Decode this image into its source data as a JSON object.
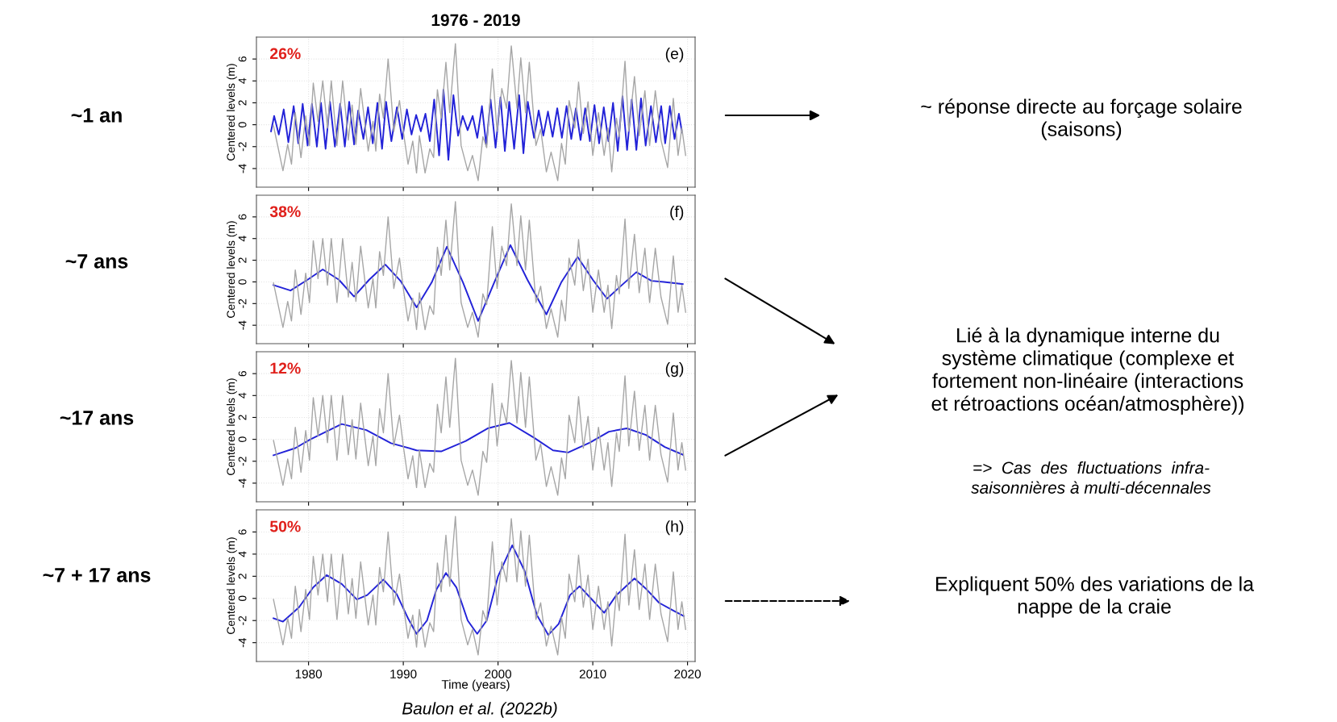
{
  "chart_data": [
    {
      "type": "line",
      "title": "1976 - 2019",
      "ylabel": "Centered levels (m)",
      "xlim": [
        1974.5,
        2020.8
      ],
      "ylim": [
        -5.7,
        8
      ],
      "xticks": [
        1980,
        1990,
        2000,
        2010,
        2020
      ],
      "yticks": [
        -4,
        -2,
        0,
        2,
        4,
        6
      ],
      "tick_labels": "y",
      "grid": true,
      "legend": false,
      "annotations": [
        "26%",
        "(e)",
        "~1 an",
        "~ réponse directe au forçage solaire\n(saisons)"
      ],
      "series": [
        {
          "color": "#a6a6a6",
          "x": [
            1976.3,
            1977.3,
            1977.8,
            1978.2,
            1978.6,
            1979.2,
            1979.7,
            1980.1,
            1980.5,
            1981.0,
            1981.5,
            1982.0,
            1982.4,
            1983.0,
            1983.6,
            1984.2,
            1984.6,
            1985.0,
            1985.5,
            1986.3,
            1986.8,
            1987.1,
            1987.5,
            1987.9,
            1988.4,
            1989.0,
            1989.6,
            1990.0,
            1990.5,
            1991.0,
            1991.4,
            1991.7,
            1992.3,
            1992.8,
            1993.2,
            1993.6,
            1994.0,
            1994.5,
            1994.9,
            1995.5,
            1996.1,
            1996.8,
            1997.3,
            1997.9,
            1998.4,
            1998.8,
            1999.4,
            1999.9,
            2000.4,
            2000.9,
            2001.4,
            2002.0,
            2002.4,
            2002.9,
            2003.3,
            2004.0,
            2004.5,
            2005.1,
            2005.6,
            2006.3,
            2006.7,
            2007.1,
            2007.5,
            2008.1,
            2008.5,
            2009.0,
            2009.5,
            2010.0,
            2010.6,
            2011.2,
            2011.6,
            2012.0,
            2012.5,
            2012.8,
            2013.4,
            2013.8,
            2014.4,
            2014.9,
            2015.5,
            2016.0,
            2016.6,
            2017.2,
            2017.9,
            2018.5,
            2019.0,
            2019.4,
            2019.8
          ],
          "values": [
            -0.1,
            -4.2,
            -1.8,
            -3.6,
            1.1,
            -3.0,
            0.8,
            -1.9,
            3.8,
            0.3,
            4.0,
            -0.3,
            4.0,
            -1.9,
            4.0,
            -1.4,
            1.8,
            -1.8,
            3.3,
            -2.4,
            0.3,
            -2.4,
            2.8,
            0.6,
            6.0,
            -0.6,
            2.2,
            -0.6,
            -3.6,
            -1.5,
            -4.4,
            -1.0,
            -4.4,
            -2.2,
            -3.0,
            3.2,
            0.6,
            5.7,
            1.1,
            7.4,
            -1.9,
            -4.2,
            -2.8,
            -5.1,
            -1.1,
            -2.1,
            5.1,
            -0.6,
            3.3,
            1.5,
            7.2,
            1.5,
            6.1,
            1.1,
            5.7,
            -1.9,
            -0.4,
            -4.3,
            -2.5,
            -5.1,
            -1.7,
            -3.6,
            2.2,
            -0.3,
            3.9,
            -0.8,
            2.1,
            -2.8,
            1.1,
            -2.8,
            -0.3,
            -4.3,
            0.6,
            -1.1,
            5.8,
            -0.6,
            4.4,
            -1.0,
            3.1,
            -1.9,
            3.1,
            -1.4,
            -3.9,
            2.4,
            -2.8,
            -0.3,
            -2.8
          ]
        },
        {
          "color": "#2323d8",
          "x": [
            1976.04,
            1976.37,
            1976.86,
            1977.38,
            1977.87,
            1978.43,
            1978.92,
            1979.38,
            1979.9,
            1980.36,
            1980.88,
            1981.31,
            1981.8,
            1982.26,
            1982.78,
            1983.34,
            1983.83,
            1984.29,
            1984.81,
            1985.24,
            1985.79,
            1986.28,
            1986.78,
            1987.27,
            1987.76,
            1988.18,
            1988.74,
            1989.33,
            1989.89,
            1990.38,
            1990.87,
            1991.36,
            1991.85,
            1992.34,
            1992.8,
            1993.26,
            1993.78,
            1994.24,
            1994.76,
            1995.29,
            1995.78,
            1996.27,
            1996.79,
            1997.32,
            1997.81,
            1998.3,
            1998.76,
            1999.21,
            1999.74,
            2000.26,
            2000.72,
            2001.18,
            2001.7,
            2002.23,
            2002.68,
            2003.14,
            2003.8,
            2004.29,
            2004.78,
            2005.27,
            2005.76,
            2006.25,
            2006.74,
            2007.23,
            2007.73,
            2008.22,
            2008.71,
            2009.2,
            2009.69,
            2010.18,
            2010.67,
            2011.16,
            2011.65,
            2012.14,
            2012.64,
            2013.13,
            2013.62,
            2014.11,
            2014.6,
            2015.09,
            2015.58,
            2016.14,
            2016.66,
            2017.22,
            2017.64,
            2018.13,
            2018.63,
            2019.09,
            2019.42
          ],
          "values": [
            -0.6,
            0.8,
            -0.9,
            1.4,
            -1.6,
            1.7,
            -1.7,
            1.9,
            -1.9,
            1.9,
            -2.0,
            2.0,
            -2.2,
            2.1,
            -2.0,
            1.9,
            -2.0,
            2.1,
            -1.8,
            1.3,
            -1.3,
            1.6,
            -1.7,
            2.0,
            -2.2,
            2.1,
            -1.5,
            1.6,
            -1.3,
            1.4,
            -0.9,
            0.9,
            -0.6,
            1.0,
            -1.5,
            2.3,
            -2.8,
            3.2,
            -3.2,
            2.7,
            -1.0,
            0.8,
            -0.5,
            0.8,
            -1.2,
            1.7,
            -1.9,
            2.3,
            -2.1,
            2.5,
            -2.4,
            2.1,
            -2.2,
            2.7,
            -2.6,
            2.1,
            -1.2,
            1.3,
            -1.0,
            1.2,
            -1.1,
            1.5,
            -1.2,
            1.7,
            -1.3,
            1.5,
            -1.4,
            1.5,
            -1.5,
            1.8,
            -1.7,
            1.6,
            -1.5,
            2.0,
            -2.4,
            2.6,
            -2.3,
            2.3,
            -2.3,
            2.4,
            -1.9,
            1.7,
            -1.6,
            1.7,
            -1.7,
            1.7,
            -1.3,
            1.0,
            -0.7
          ]
        }
      ]
    },
    {
      "type": "line",
      "ylabel": "Centered levels (m)",
      "xlim": [
        1974.5,
        2020.8
      ],
      "ylim": [
        -5.7,
        8
      ],
      "xticks": [
        1980,
        1990,
        2000,
        2010,
        2020
      ],
      "yticks": [
        -4,
        -2,
        0,
        2,
        4,
        6
      ],
      "tick_labels": "y",
      "grid": true,
      "legend": false,
      "annotations": [
        "38%",
        "(f)",
        "~7 ans",
        "Lié à la dynamique interne du\nsystème climatique (complexe et\nfortement non-linéaire (interactions\net rétroactions océan/atmosphère))",
        "=>  Cas  des  fluctuations  infra-\nsaisonnières à multi-décennales"
      ],
      "series": [
        {
          "color": "#a6a6a6",
          "x": [
            1976.3,
            1977.3,
            1977.8,
            1978.2,
            1978.6,
            1979.2,
            1979.7,
            1980.1,
            1980.5,
            1981.0,
            1981.5,
            1982.0,
            1982.4,
            1983.0,
            1983.6,
            1984.2,
            1984.6,
            1985.0,
            1985.5,
            1986.3,
            1986.8,
            1987.1,
            1987.5,
            1987.9,
            1988.4,
            1989.0,
            1989.6,
            1990.0,
            1990.5,
            1991.0,
            1991.4,
            1991.7,
            1992.3,
            1992.8,
            1993.2,
            1993.6,
            1994.0,
            1994.5,
            1994.9,
            1995.5,
            1996.1,
            1996.8,
            1997.3,
            1997.9,
            1998.4,
            1998.8,
            1999.4,
            1999.9,
            2000.4,
            2000.9,
            2001.4,
            2002.0,
            2002.4,
            2002.9,
            2003.3,
            2004.0,
            2004.5,
            2005.1,
            2005.6,
            2006.3,
            2006.7,
            2007.1,
            2007.5,
            2008.1,
            2008.5,
            2009.0,
            2009.5,
            2010.0,
            2010.6,
            2011.2,
            2011.6,
            2012.0,
            2012.5,
            2012.8,
            2013.4,
            2013.8,
            2014.4,
            2014.9,
            2015.5,
            2016.0,
            2016.6,
            2017.2,
            2017.9,
            2018.5,
            2019.0,
            2019.4,
            2019.8
          ],
          "values": [
            -0.1,
            -4.2,
            -1.8,
            -3.6,
            1.1,
            -3.0,
            0.8,
            -1.9,
            3.8,
            0.3,
            4.0,
            -0.3,
            4.0,
            -1.9,
            4.0,
            -1.4,
            1.8,
            -1.8,
            3.3,
            -2.4,
            0.3,
            -2.4,
            2.8,
            0.6,
            6.0,
            -0.6,
            2.2,
            -0.6,
            -3.6,
            -1.5,
            -4.4,
            -1.0,
            -4.4,
            -2.2,
            -3.0,
            3.2,
            0.6,
            5.7,
            1.1,
            7.4,
            -1.9,
            -4.2,
            -2.8,
            -5.1,
            -1.1,
            -2.1,
            5.1,
            -0.6,
            3.3,
            1.5,
            7.2,
            1.5,
            6.1,
            1.1,
            5.7,
            -1.9,
            -0.4,
            -4.3,
            -2.5,
            -5.1,
            -1.7,
            -3.6,
            2.2,
            -0.3,
            3.9,
            -0.8,
            2.1,
            -2.8,
            1.1,
            -2.8,
            -0.3,
            -4.3,
            0.6,
            -1.1,
            5.8,
            -0.6,
            4.4,
            -1.0,
            3.1,
            -1.9,
            3.1,
            -1.4,
            -3.9,
            2.4,
            -2.8,
            -0.3,
            -2.8
          ]
        },
        {
          "color": "#2323d8",
          "x": [
            1976.3,
            1978.1,
            1979.9,
            1981.5,
            1983.2,
            1984.8,
            1986.4,
            1988.1,
            1989.7,
            1991.4,
            1993.0,
            1994.6,
            1996.3,
            1997.9,
            1999.6,
            2001.3,
            2003.1,
            2005.1,
            2006.7,
            2008.4,
            2010.0,
            2011.5,
            2013.0,
            2014.6,
            2016.2,
            2017.5,
            2019.5
          ],
          "values": [
            -0.3,
            -0.8,
            0.2,
            1.15,
            0.2,
            -1.35,
            0.2,
            1.6,
            0.1,
            -2.35,
            -0.05,
            3.25,
            -0.05,
            -3.6,
            -0.05,
            3.4,
            0.2,
            -3.0,
            0,
            2.3,
            0.2,
            -1.55,
            -0.35,
            0.9,
            0.1,
            0,
            -0.2
          ]
        }
      ]
    },
    {
      "type": "line",
      "ylabel": "Centered levels (m)",
      "xlim": [
        1974.5,
        2020.8
      ],
      "ylim": [
        -5.7,
        8
      ],
      "xticks": [
        1980,
        1990,
        2000,
        2010,
        2020
      ],
      "yticks": [
        -4,
        -2,
        0,
        2,
        4,
        6
      ],
      "tick_labels": "y",
      "grid": true,
      "legend": false,
      "annotations": [
        "12%",
        "(g)",
        "~17 ans"
      ],
      "series": [
        {
          "color": "#a6a6a6",
          "x": [
            1976.3,
            1977.3,
            1977.8,
            1978.2,
            1978.6,
            1979.2,
            1979.7,
            1980.1,
            1980.5,
            1981.0,
            1981.5,
            1982.0,
            1982.4,
            1983.0,
            1983.6,
            1984.2,
            1984.6,
            1985.0,
            1985.5,
            1986.3,
            1986.8,
            1987.1,
            1987.5,
            1987.9,
            1988.4,
            1989.0,
            1989.6,
            1990.0,
            1990.5,
            1991.0,
            1991.4,
            1991.7,
            1992.3,
            1992.8,
            1993.2,
            1993.6,
            1994.0,
            1994.5,
            1994.9,
            1995.5,
            1996.1,
            1996.8,
            1997.3,
            1997.9,
            1998.4,
            1998.8,
            1999.4,
            1999.9,
            2000.4,
            2000.9,
            2001.4,
            2002.0,
            2002.4,
            2002.9,
            2003.3,
            2004.0,
            2004.5,
            2005.1,
            2005.6,
            2006.3,
            2006.7,
            2007.1,
            2007.5,
            2008.1,
            2008.5,
            2009.0,
            2009.5,
            2010.0,
            2010.6,
            2011.2,
            2011.6,
            2012.0,
            2012.5,
            2012.8,
            2013.4,
            2013.8,
            2014.4,
            2014.9,
            2015.5,
            2016.0,
            2016.6,
            2017.2,
            2017.9,
            2018.5,
            2019.0,
            2019.4,
            2019.8
          ],
          "values": [
            -0.1,
            -4.2,
            -1.8,
            -3.6,
            1.1,
            -3.0,
            0.8,
            -1.9,
            3.8,
            0.3,
            4.0,
            -0.3,
            4.0,
            -1.9,
            4.0,
            -1.4,
            1.8,
            -1.8,
            3.3,
            -2.4,
            0.3,
            -2.4,
            2.8,
            0.6,
            6.0,
            -0.6,
            2.2,
            -0.6,
            -3.6,
            -1.5,
            -4.4,
            -1.0,
            -4.4,
            -2.2,
            -3.0,
            3.2,
            0.6,
            5.7,
            1.1,
            7.4,
            -1.9,
            -4.2,
            -2.8,
            -5.1,
            -1.1,
            -2.1,
            5.1,
            -0.6,
            3.3,
            1.5,
            7.2,
            1.5,
            6.1,
            1.1,
            5.7,
            -1.9,
            -0.4,
            -4.3,
            -2.5,
            -5.1,
            -1.7,
            -3.6,
            2.2,
            -0.3,
            3.9,
            -0.8,
            2.1,
            -2.8,
            1.1,
            -2.8,
            -0.3,
            -4.3,
            0.6,
            -1.1,
            5.8,
            -0.6,
            4.4,
            -1.0,
            3.1,
            -1.9,
            3.1,
            -1.4,
            -3.9,
            2.4,
            -2.8,
            -0.3,
            -2.8
          ]
        },
        {
          "color": "#2323d8",
          "x": [
            1976.3,
            1978.6,
            1980.2,
            1983.5,
            1986.1,
            1988.7,
            1991.4,
            1994.0,
            1996.6,
            1998.9,
            2001.2,
            2003.8,
            2005.8,
            2007.4,
            2009.7,
            2011.7,
            2013.6,
            2015.6,
            2017.6,
            2019.5
          ],
          "values": [
            -1.45,
            -0.8,
            0,
            1.4,
            0.85,
            -0.35,
            -1.0,
            -1.1,
            -0.15,
            1.0,
            1.5,
            0.15,
            -1.0,
            -1.2,
            -0.3,
            0.7,
            1.0,
            0.4,
            -0.7,
            -1.4
          ]
        }
      ]
    },
    {
      "type": "line",
      "xlabel": "Time (years)",
      "ylabel": "Centered levels (m)",
      "xlim": [
        1974.5,
        2020.8
      ],
      "ylim": [
        -5.7,
        8
      ],
      "xticks": [
        1980,
        1990,
        2000,
        2010,
        2020
      ],
      "yticks": [
        -4,
        -2,
        0,
        2,
        4,
        6
      ],
      "grid": true,
      "legend": false,
      "annotations": [
        "50%",
        "(h)",
        "~7 + 17 ans",
        "Expliquent 50% des variations de la\nnappe de la craie",
        "Baulon et al. (2022b)"
      ],
      "series": [
        {
          "color": "#a6a6a6",
          "x": [
            1976.3,
            1977.3,
            1977.8,
            1978.2,
            1978.6,
            1979.2,
            1979.7,
            1980.1,
            1980.5,
            1981.0,
            1981.5,
            1982.0,
            1982.4,
            1983.0,
            1983.6,
            1984.2,
            1984.6,
            1985.0,
            1985.5,
            1986.3,
            1986.8,
            1987.1,
            1987.5,
            1987.9,
            1988.4,
            1989.0,
            1989.6,
            1990.0,
            1990.5,
            1991.0,
            1991.4,
            1991.7,
            1992.3,
            1992.8,
            1993.2,
            1993.6,
            1994.0,
            1994.5,
            1994.9,
            1995.5,
            1996.1,
            1996.8,
            1997.3,
            1997.9,
            1998.4,
            1998.8,
            1999.4,
            1999.9,
            2000.4,
            2000.9,
            2001.4,
            2002.0,
            2002.4,
            2002.9,
            2003.3,
            2004.0,
            2004.5,
            2005.1,
            2005.6,
            2006.3,
            2006.7,
            2007.1,
            2007.5,
            2008.1,
            2008.5,
            2009.0,
            2009.5,
            2010.0,
            2010.6,
            2011.2,
            2011.6,
            2012.0,
            2012.5,
            2012.8,
            2013.4,
            2013.8,
            2014.4,
            2014.9,
            2015.5,
            2016.0,
            2016.6,
            2017.2,
            2017.9,
            2018.5,
            2019.0,
            2019.4,
            2019.8
          ],
          "values": [
            -0.1,
            -4.2,
            -1.8,
            -3.6,
            1.1,
            -3.0,
            0.8,
            -1.9,
            3.8,
            0.3,
            4.0,
            -0.3,
            4.0,
            -1.9,
            4.0,
            -1.4,
            1.8,
            -1.8,
            3.3,
            -2.4,
            0.3,
            -2.4,
            2.8,
            0.6,
            6.0,
            -0.6,
            2.2,
            -0.6,
            -3.6,
            -1.5,
            -4.4,
            -1.0,
            -4.4,
            -2.2,
            -3.0,
            3.2,
            0.6,
            5.7,
            1.1,
            7.4,
            -1.9,
            -4.2,
            -2.8,
            -5.1,
            -1.1,
            -2.1,
            5.1,
            -0.6,
            3.3,
            1.5,
            7.2,
            1.5,
            6.1,
            1.1,
            5.7,
            -1.9,
            -0.4,
            -4.3,
            -2.5,
            -5.1,
            -1.7,
            -3.6,
            2.2,
            -0.3,
            3.9,
            -0.8,
            2.1,
            -2.8,
            1.1,
            -2.8,
            -0.3,
            -4.3,
            0.6,
            -1.1,
            5.8,
            -0.6,
            4.4,
            -1.0,
            3.1,
            -1.9,
            3.1,
            -1.4,
            -3.9,
            2.4,
            -2.8,
            -0.3,
            -2.8
          ]
        },
        {
          "color": "#2323d8",
          "x": [
            1976.3,
            1977.3,
            1979.0,
            1980.5,
            1981.9,
            1983.5,
            1985.1,
            1986.2,
            1987.9,
            1989.3,
            1990.5,
            1991.4,
            1992.5,
            1993.5,
            1994.5,
            1995.6,
            1996.8,
            1997.8,
            1998.8,
            2000.0,
            2001.5,
            2002.8,
            2004.1,
            2005.3,
            2006.4,
            2007.6,
            2008.6,
            2009.8,
            2011.2,
            2012.5,
            2014.4,
            2015.7,
            2017.0,
            2018.5,
            2019.6
          ],
          "values": [
            -1.8,
            -2.1,
            -0.8,
            1.0,
            2.1,
            1.3,
            -0.1,
            0.3,
            1.7,
            0.4,
            -1.8,
            -3.2,
            -2.0,
            0.8,
            2.3,
            1.0,
            -2.0,
            -3.2,
            -2.0,
            2.0,
            4.8,
            2.5,
            -1.5,
            -3.3,
            -2.3,
            0.3,
            1.1,
            0.0,
            -1.3,
            0.3,
            1.8,
            0.8,
            -0.4,
            -1.1,
            -1.6
          ]
        }
      ]
    }
  ]
}
